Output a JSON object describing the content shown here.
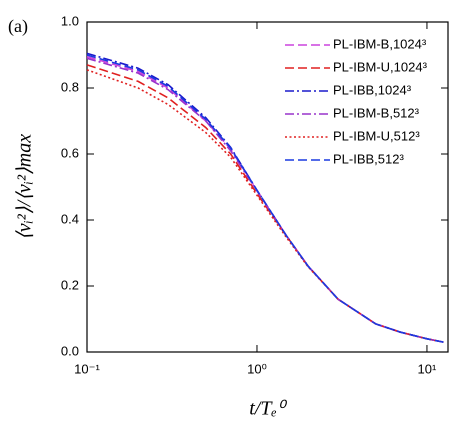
{
  "chart_data": {
    "type": "line",
    "panel_label": "(a)",
    "x_label": "t/Tₑ⁰",
    "y_label": "⟨vᵢ²⟩/⟨vᵢ²⟩max",
    "x_log": true,
    "xlim": [
      0.1,
      13.3
    ],
    "ylim": [
      0,
      1
    ],
    "xticks": [
      {
        "value": 0.1,
        "label": "10⁻¹"
      },
      {
        "value": 1,
        "label": "10⁰"
      },
      {
        "value": 10,
        "label": "10¹"
      }
    ],
    "yticks": [
      {
        "value": 0,
        "label": "0.0"
      },
      0.2,
      0.4,
      0.6,
      0.8,
      {
        "value": 1,
        "label": "1.0"
      }
    ],
    "legend": "upper right",
    "x": [
      0.1,
      0.2,
      0.3,
      0.5,
      0.7,
      1,
      1.5,
      2,
      3,
      5,
      7,
      10,
      12.5
    ],
    "series": [
      {
        "name": "PL-IBM-B,1024³",
        "color": "#cc44dd",
        "style": "dashed",
        "values": [
          0.895,
          0.85,
          0.8,
          0.7,
          0.615,
          0.49,
          0.35,
          0.26,
          0.16,
          0.085,
          0.06,
          0.04,
          0.03
        ]
      },
      {
        "name": "PL-IBM-U,1024³",
        "color": "#e02020",
        "style": "dashed",
        "values": [
          0.87,
          0.82,
          0.77,
          0.68,
          0.6,
          0.48,
          0.35,
          0.26,
          0.16,
          0.085,
          0.06,
          0.04,
          0.03
        ]
      },
      {
        "name": "PL-IBB,1024³",
        "color": "#1a1acc",
        "style": "dashdot",
        "values": [
          0.905,
          0.86,
          0.81,
          0.71,
          0.62,
          0.49,
          0.35,
          0.26,
          0.16,
          0.085,
          0.06,
          0.04,
          0.03
        ]
      },
      {
        "name": "PL-IBM-B,512³",
        "color": "#9933cc",
        "style": "dashdot",
        "values": [
          0.89,
          0.845,
          0.795,
          0.7,
          0.61,
          0.488,
          0.35,
          0.26,
          0.16,
          0.085,
          0.06,
          0.04,
          0.03
        ]
      },
      {
        "name": "PL-IBM-U,512³",
        "color": "#e02020",
        "style": "dotted",
        "values": [
          0.855,
          0.8,
          0.75,
          0.665,
          0.59,
          0.475,
          0.345,
          0.258,
          0.16,
          0.085,
          0.06,
          0.04,
          0.03
        ]
      },
      {
        "name": "PL-IBB,512³",
        "color": "#1a3ae0",
        "style": "dashed",
        "values": [
          0.9,
          0.855,
          0.805,
          0.705,
          0.618,
          0.49,
          0.35,
          0.26,
          0.16,
          0.085,
          0.06,
          0.04,
          0.03
        ]
      }
    ]
  }
}
